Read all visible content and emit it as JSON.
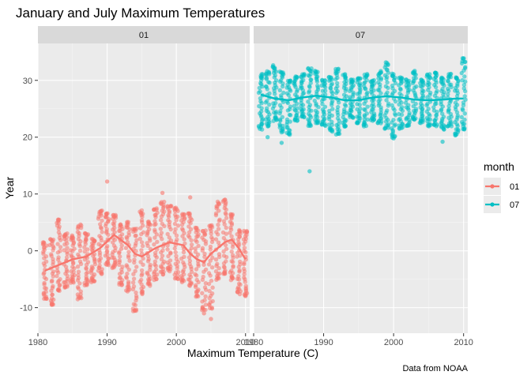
{
  "colors": {
    "month_01": "#F8766D",
    "month_07": "#00BFC4"
  },
  "chart_data": {
    "type": "scatter",
    "title": "January and July Maximum Temperatures",
    "xlabel": "Maximum Temperature (C)",
    "ylabel": "Year",
    "caption": "Data from NOAA",
    "xlim": [
      1980,
      2010.6
    ],
    "ylim": [
      -14.5,
      36.5
    ],
    "x_ticks": [
      1980,
      1990,
      2000,
      2010
    ],
    "x_tick_labels": [
      "1980",
      "1990",
      "2000",
      "2010"
    ],
    "y_ticks": [
      -10,
      0,
      10,
      20,
      30
    ],
    "y_tick_labels": [
      "-10",
      "0",
      "10",
      "20",
      "30"
    ],
    "facets": [
      "01",
      "07"
    ],
    "legend": {
      "title": "month",
      "position": "right",
      "items": [
        "01",
        "07"
      ]
    },
    "grid": true,
    "series": [
      {
        "facet": "01",
        "color_key": "month_01",
        "ranges": [
          [
            1981,
            -8.5,
            1.5
          ],
          [
            1982,
            -9.5,
            2.0
          ],
          [
            1983,
            -7.0,
            5.5
          ],
          [
            1984,
            -6.5,
            3.0
          ],
          [
            1985,
            -5.5,
            2.5
          ],
          [
            1986,
            -8.5,
            4.5
          ],
          [
            1987,
            -6.0,
            3.0
          ],
          [
            1988,
            -5.5,
            2.0
          ],
          [
            1989,
            -4.0,
            7.0
          ],
          [
            1990,
            -2.5,
            6.5
          ],
          [
            1991,
            -3.0,
            6.5
          ],
          [
            1992,
            -6.0,
            4.5
          ],
          [
            1993,
            -7.0,
            5.0
          ],
          [
            1994,
            -10.5,
            4.0
          ],
          [
            1995,
            -7.5,
            7.0
          ],
          [
            1996,
            -6.0,
            5.0
          ],
          [
            1997,
            -5.0,
            7.5
          ],
          [
            1998,
            -4.0,
            8.5
          ],
          [
            1999,
            -3.5,
            8.0
          ],
          [
            2000,
            -5.0,
            7.5
          ],
          [
            2001,
            -5.5,
            6.5
          ],
          [
            2002,
            -6.0,
            6.5
          ],
          [
            2003,
            -8.0,
            4.0
          ],
          [
            2004,
            -10.5,
            3.5
          ],
          [
            2005,
            -10.0,
            4.5
          ],
          [
            2006,
            -5.0,
            8.5
          ],
          [
            2007,
            -4.0,
            9.0
          ],
          [
            2008,
            -5.0,
            6.5
          ],
          [
            2009,
            -7.5,
            3.5
          ],
          [
            2010,
            -8.0,
            3.5
          ]
        ],
        "outliers": [
          [
            1990,
            12.2
          ],
          [
            1998,
            10.2
          ],
          [
            2002,
            9.4
          ],
          [
            2004,
            -11.0
          ],
          [
            2005,
            -12.0
          ],
          [
            1994,
            -10.5
          ],
          [
            1982,
            -9.5
          ]
        ],
        "smooth": [
          [
            1981,
            -3.5
          ],
          [
            1983,
            -2.5
          ],
          [
            1985,
            -1.5
          ],
          [
            1987,
            -1.0
          ],
          [
            1989,
            0.5
          ],
          [
            1991,
            2.8
          ],
          [
            1993,
            1.0
          ],
          [
            1994,
            -0.5
          ],
          [
            1995,
            -1.0
          ],
          [
            1997,
            0.5
          ],
          [
            1999,
            1.5
          ],
          [
            2001,
            1.0
          ],
          [
            2002,
            -0.5
          ],
          [
            2003,
            -1.5
          ],
          [
            2004,
            -2.0
          ],
          [
            2005,
            -0.5
          ],
          [
            2007,
            1.5
          ],
          [
            2008,
            2.0
          ],
          [
            2009,
            0.5
          ],
          [
            2010,
            -1.5
          ]
        ]
      },
      {
        "facet": "07",
        "color_key": "month_07",
        "ranges": [
          [
            1981,
            21.5,
            31.0
          ],
          [
            1982,
            22.0,
            31.5
          ],
          [
            1983,
            23.0,
            32.5
          ],
          [
            1984,
            21.0,
            31.5
          ],
          [
            1985,
            20.5,
            30.0
          ],
          [
            1986,
            23.0,
            30.5
          ],
          [
            1987,
            23.5,
            31.0
          ],
          [
            1988,
            22.0,
            32.0
          ],
          [
            1989,
            22.5,
            31.5
          ],
          [
            1990,
            22.0,
            30.0
          ],
          [
            1991,
            21.0,
            30.5
          ],
          [
            1992,
            20.5,
            32.0
          ],
          [
            1993,
            22.0,
            31.0
          ],
          [
            1994,
            23.5,
            30.0
          ],
          [
            1995,
            22.5,
            30.5
          ],
          [
            1996,
            22.0,
            31.0
          ],
          [
            1997,
            23.0,
            30.0
          ],
          [
            1998,
            22.5,
            31.5
          ],
          [
            1999,
            21.5,
            33.0
          ],
          [
            2000,
            20.0,
            31.0
          ],
          [
            2001,
            21.5,
            30.5
          ],
          [
            2002,
            22.0,
            30.0
          ],
          [
            2003,
            23.0,
            31.5
          ],
          [
            2004,
            22.5,
            30.0
          ],
          [
            2005,
            22.0,
            31.0
          ],
          [
            2006,
            22.0,
            31.5
          ],
          [
            2007,
            21.5,
            30.5
          ],
          [
            2008,
            22.0,
            31.0
          ],
          [
            2009,
            20.5,
            30.5
          ],
          [
            2010,
            21.5,
            33.8
          ]
        ],
        "outliers": [
          [
            1988,
            14.0
          ],
          [
            1984,
            19.0
          ],
          [
            2007,
            19.2
          ],
          [
            1982,
            20.0
          ],
          [
            2000,
            19.8
          ],
          [
            2009,
            20.5
          ]
        ],
        "smooth": [
          [
            1981,
            27.5
          ],
          [
            1983,
            26.8
          ],
          [
            1985,
            26.5
          ],
          [
            1987,
            27.0
          ],
          [
            1989,
            27.3
          ],
          [
            1991,
            27.0
          ],
          [
            1993,
            26.5
          ],
          [
            1995,
            26.5
          ],
          [
            1997,
            27.0
          ],
          [
            1999,
            27.2
          ],
          [
            2001,
            27.0
          ],
          [
            2003,
            26.6
          ],
          [
            2005,
            26.5
          ],
          [
            2007,
            26.6
          ],
          [
            2009,
            26.8
          ],
          [
            2010,
            26.8
          ]
        ]
      }
    ]
  }
}
